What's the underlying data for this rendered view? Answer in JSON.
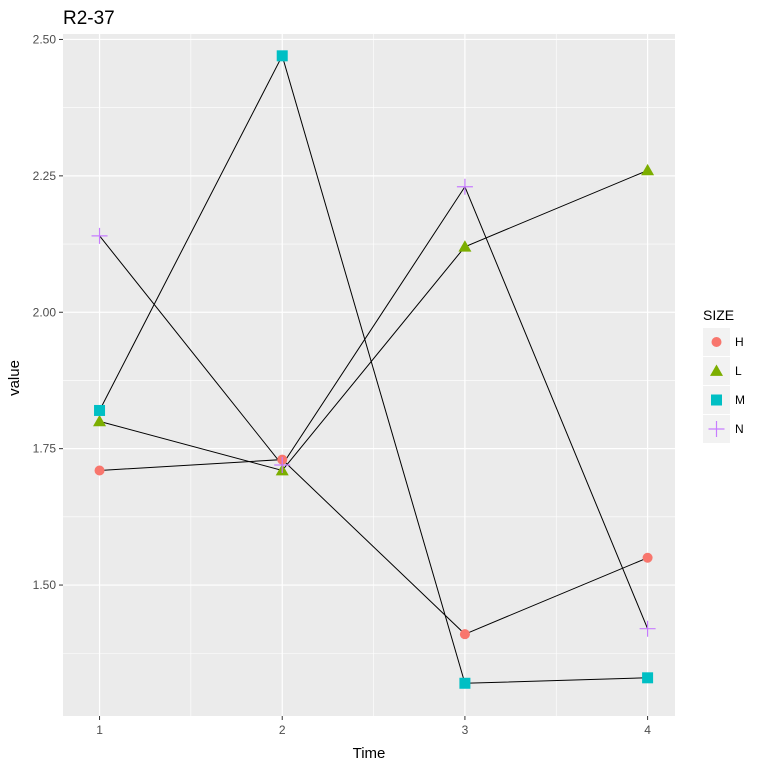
{
  "chart_data": {
    "type": "line",
    "title": "R2-37",
    "xlabel": "Time",
    "ylabel": "value",
    "x": [
      1,
      2,
      3,
      4
    ],
    "x_tick_labels": [
      "1",
      "2",
      "3",
      "4"
    ],
    "y_ticks": [
      1.5,
      1.75,
      2.0,
      2.25,
      2.5
    ],
    "y_tick_labels": [
      "1.50",
      "1.75",
      "2.00",
      "2.25",
      "2.50"
    ],
    "xlim": [
      0.8,
      4.15
    ],
    "ylim": [
      1.26,
      2.51
    ],
    "grid": true,
    "legend": {
      "title": "SIZE",
      "position": "right"
    },
    "series": [
      {
        "name": "H",
        "shape": "circle",
        "color": "#F8766D",
        "values": [
          1.71,
          1.73,
          1.41,
          1.55
        ]
      },
      {
        "name": "L",
        "shape": "triangle",
        "color": "#7CAE00",
        "values": [
          1.8,
          1.71,
          2.12,
          2.26
        ]
      },
      {
        "name": "M",
        "shape": "square",
        "color": "#00BFC4",
        "values": [
          1.82,
          2.47,
          1.32,
          1.33
        ]
      },
      {
        "name": "N",
        "shape": "plus",
        "color": "#C77CFF",
        "values": [
          2.14,
          1.72,
          2.23,
          1.42
        ]
      }
    ],
    "panel_background": "#EBEBEB",
    "gridline_color": "#FFFFFF",
    "line_color": "#000000"
  }
}
